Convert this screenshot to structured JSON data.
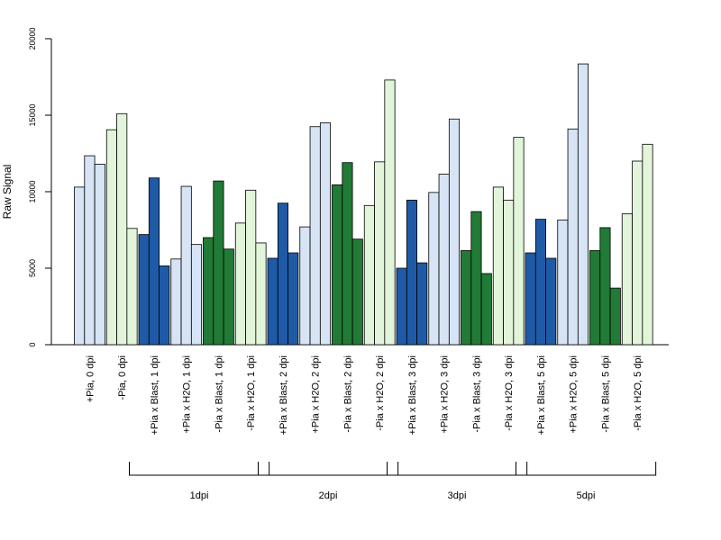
{
  "chart_data": {
    "type": "bar",
    "title": "",
    "xlabel": "",
    "ylabel": "Raw Signal",
    "ylim": [
      0,
      20000
    ],
    "yticks": [
      "0",
      "5000",
      "10000",
      "15000",
      "20000"
    ],
    "grid": false,
    "legend": "none",
    "categories": [
      "+Pia, 0 dpi",
      "-Pia, 0 dpi",
      "+Pia x Blast, 1 dpi",
      "+Pia x H2O, 1 dpi",
      "-Pia x Blast, 1 dpi",
      "-Pia x H2O, 1 dpi",
      "+Pia x Blast, 2 dpi",
      "+Pia x H2O, 2 dpi",
      "-Pia x Blast, 2 dpi",
      "-Pia x H2O, 2 dpi",
      "+Pia x Blast, 3 dpi",
      "+Pia x H2O, 3 dpi",
      "-Pia x Blast, 3 dpi",
      "-Pia x H2O, 3 dpi",
      "+Pia x Blast, 5 dpi",
      "+Pia x H2O, 5 dpi",
      "-Pia x Blast, 5 dpi",
      "-Pia x H2O, 5 dpi"
    ],
    "category_colors": [
      "#D6E4F5",
      "#E2F5DA",
      "#1F5AA6",
      "#D6E4F5",
      "#217A35",
      "#E2F5DA",
      "#1F5AA6",
      "#D6E4F5",
      "#217A35",
      "#E2F5DA",
      "#1F5AA6",
      "#D6E4F5",
      "#217A35",
      "#E2F5DA",
      "#1F5AA6",
      "#D6E4F5",
      "#217A35",
      "#E2F5DA"
    ],
    "replicate_values": [
      [
        10300,
        12350,
        11800
      ],
      [
        14050,
        15100,
        7600
      ],
      [
        7200,
        10900,
        5150
      ],
      [
        5600,
        10350,
        6550
      ],
      [
        7000,
        10700,
        6250
      ],
      [
        7950,
        10100,
        6650
      ],
      [
        5650,
        9250,
        6000
      ],
      [
        7700,
        14250,
        14500
      ],
      [
        10450,
        11900,
        6900
      ],
      [
        9100,
        11950,
        17300
      ],
      [
        5000,
        9450,
        5350
      ],
      [
        9950,
        11150,
        14750
      ],
      [
        6150,
        8700,
        4650
      ],
      [
        10300,
        9450,
        13550
      ],
      [
        6000,
        8200,
        5650
      ],
      [
        8150,
        14100,
        18350
      ],
      [
        6150,
        7650,
        3700
      ],
      [
        8550,
        12000,
        13100
      ]
    ],
    "groups": [
      {
        "label": "1dpi",
        "first": 2,
        "last": 5
      },
      {
        "label": "2dpi",
        "first": 6,
        "last": 9
      },
      {
        "label": "3dpi",
        "first": 10,
        "last": 13
      },
      {
        "label": "5dpi",
        "first": 14,
        "last": 17
      }
    ]
  }
}
